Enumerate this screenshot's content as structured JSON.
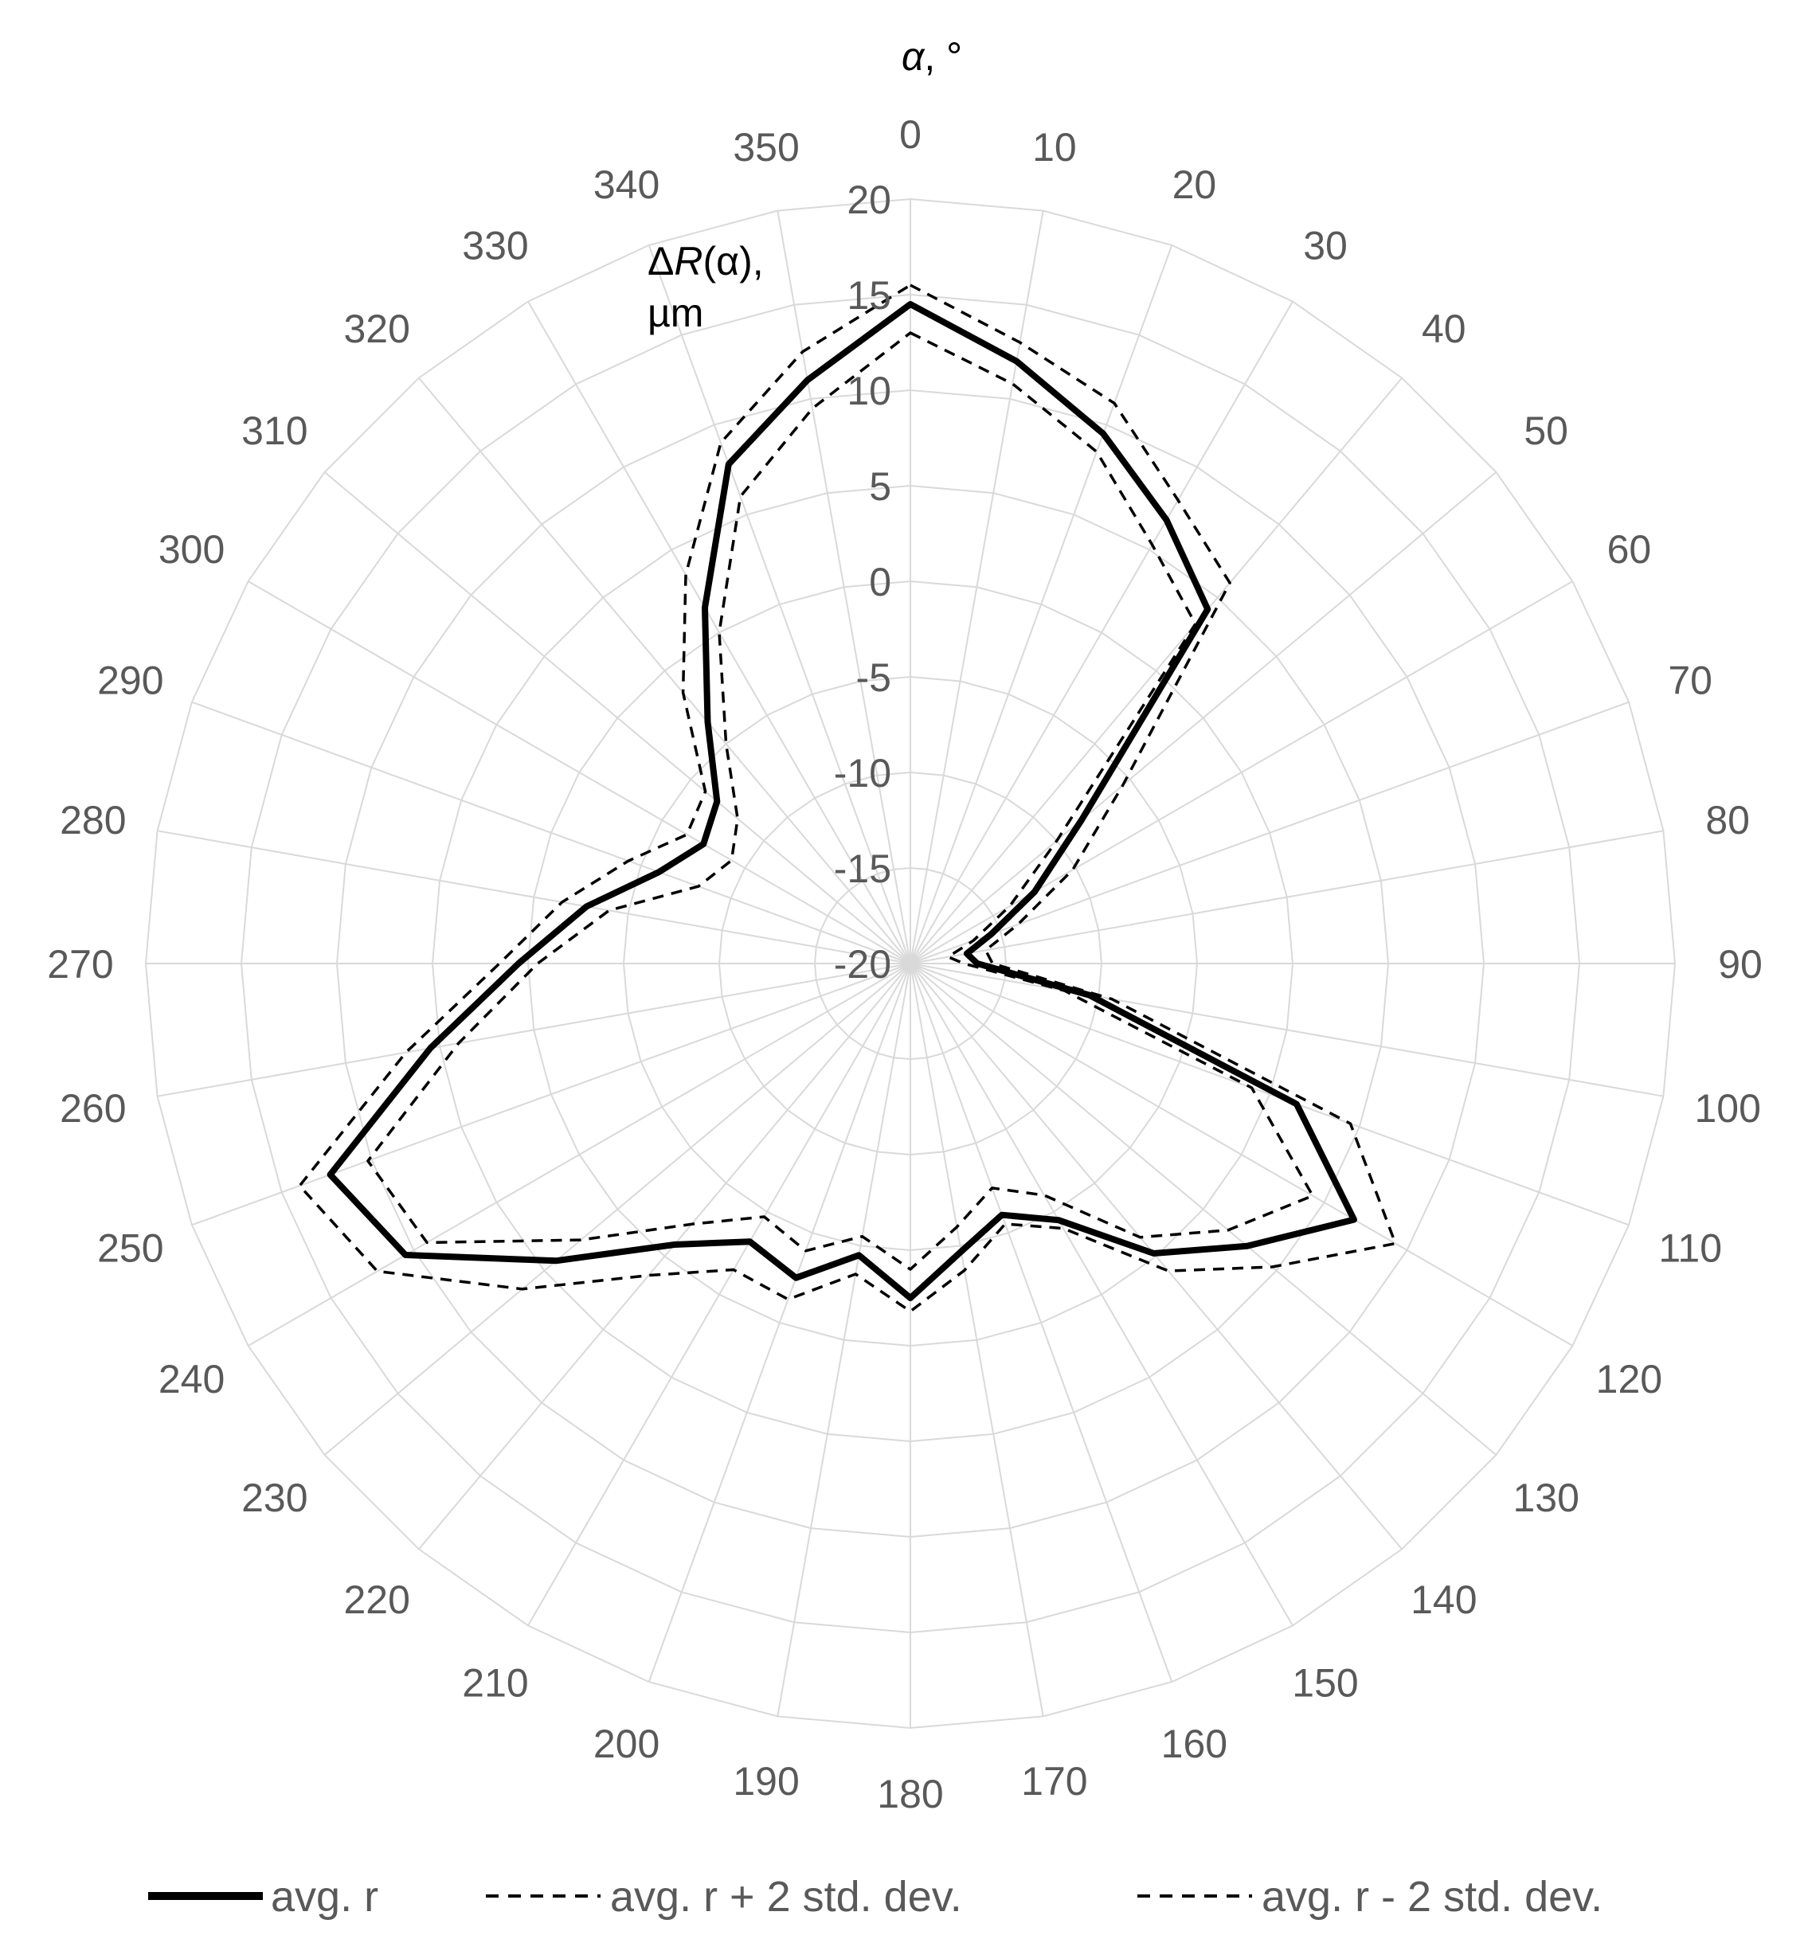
{
  "chart_data": {
    "type": "radar",
    "angle_axis": {
      "title_symbol": "α",
      "title_rest": ", °",
      "ticks": [
        "0",
        "10",
        "20",
        "30",
        "40",
        "50",
        "60",
        "70",
        "80",
        "90",
        "100",
        "110",
        "120",
        "130",
        "140",
        "150",
        "160",
        "170",
        "180",
        "190",
        "200",
        "210",
        "220",
        "230",
        "240",
        "250",
        "260",
        "270",
        "280",
        "290",
        "300",
        "310",
        "320",
        "330",
        "340",
        "350"
      ]
    },
    "radial_axis": {
      "title_line1_prefix": "Δ",
      "title_line1_symbol": "R",
      "title_line1_suffix": "(α),",
      "title_line2": "µm",
      "ticks": [
        "-20",
        "-15",
        "-10",
        "-5",
        "0",
        "5",
        "10",
        "15",
        "20"
      ],
      "range": [
        -20,
        20
      ]
    },
    "grid": true,
    "legend_position": "bottom",
    "series": [
      {
        "name": "avg. r",
        "style": "solid",
        "color": "#000000",
        "values": [
          14.5,
          12,
          9.5,
          6.8,
          4.2,
          -8.3,
          -12.5,
          -15.5,
          -17,
          -16.5,
          -10.5,
          1.5,
          6.8,
          3,
          -0.2,
          -4.5,
          -6,
          -4.7,
          -2.5,
          -4.5,
          -2.5,
          -3.2,
          -0.8,
          4.2,
          10.5,
          12.3,
          5.5,
          0.5,
          -2.8,
          -6,
          -7.5,
          -6.8,
          -3.5,
          1.5,
          7.8,
          11
        ]
      },
      {
        "name": "avg. r + 2 std. dev.",
        "style": "dashed",
        "color": "#000000",
        "values": [
          15.5,
          13,
          11.2,
          8,
          6,
          -5.5,
          -10.2,
          -14,
          -16,
          -15.7,
          -9.3,
          4.5,
          9.3,
          4.7,
          1,
          -4,
          -5.5,
          -3.7,
          -1.8,
          -3.5,
          -1.3,
          -1.5,
          1.3,
          6.5,
          12.2,
          14,
          6.8,
          1.5,
          -1.5,
          -4.3,
          -6.5,
          -6,
          -1.5,
          3.5,
          9,
          12.5
        ]
      },
      {
        "name": "avg. r - 2 std. dev.",
        "style": "dashed",
        "color": "#000000",
        "values": [
          13,
          10.8,
          8.5,
          5.3,
          3.2,
          -10,
          -14,
          -16.5,
          -18,
          -17.2,
          -11.8,
          -1,
          4.3,
          1.7,
          -1.3,
          -6,
          -7.5,
          -6,
          -4,
          -5.5,
          -4,
          -4.7,
          -2.2,
          2.5,
          9.2,
          10.2,
          4,
          -0.5,
          -4,
          -8.2,
          -9.2,
          -8.2,
          -5,
          0,
          6,
          9.5
        ]
      }
    ]
  }
}
